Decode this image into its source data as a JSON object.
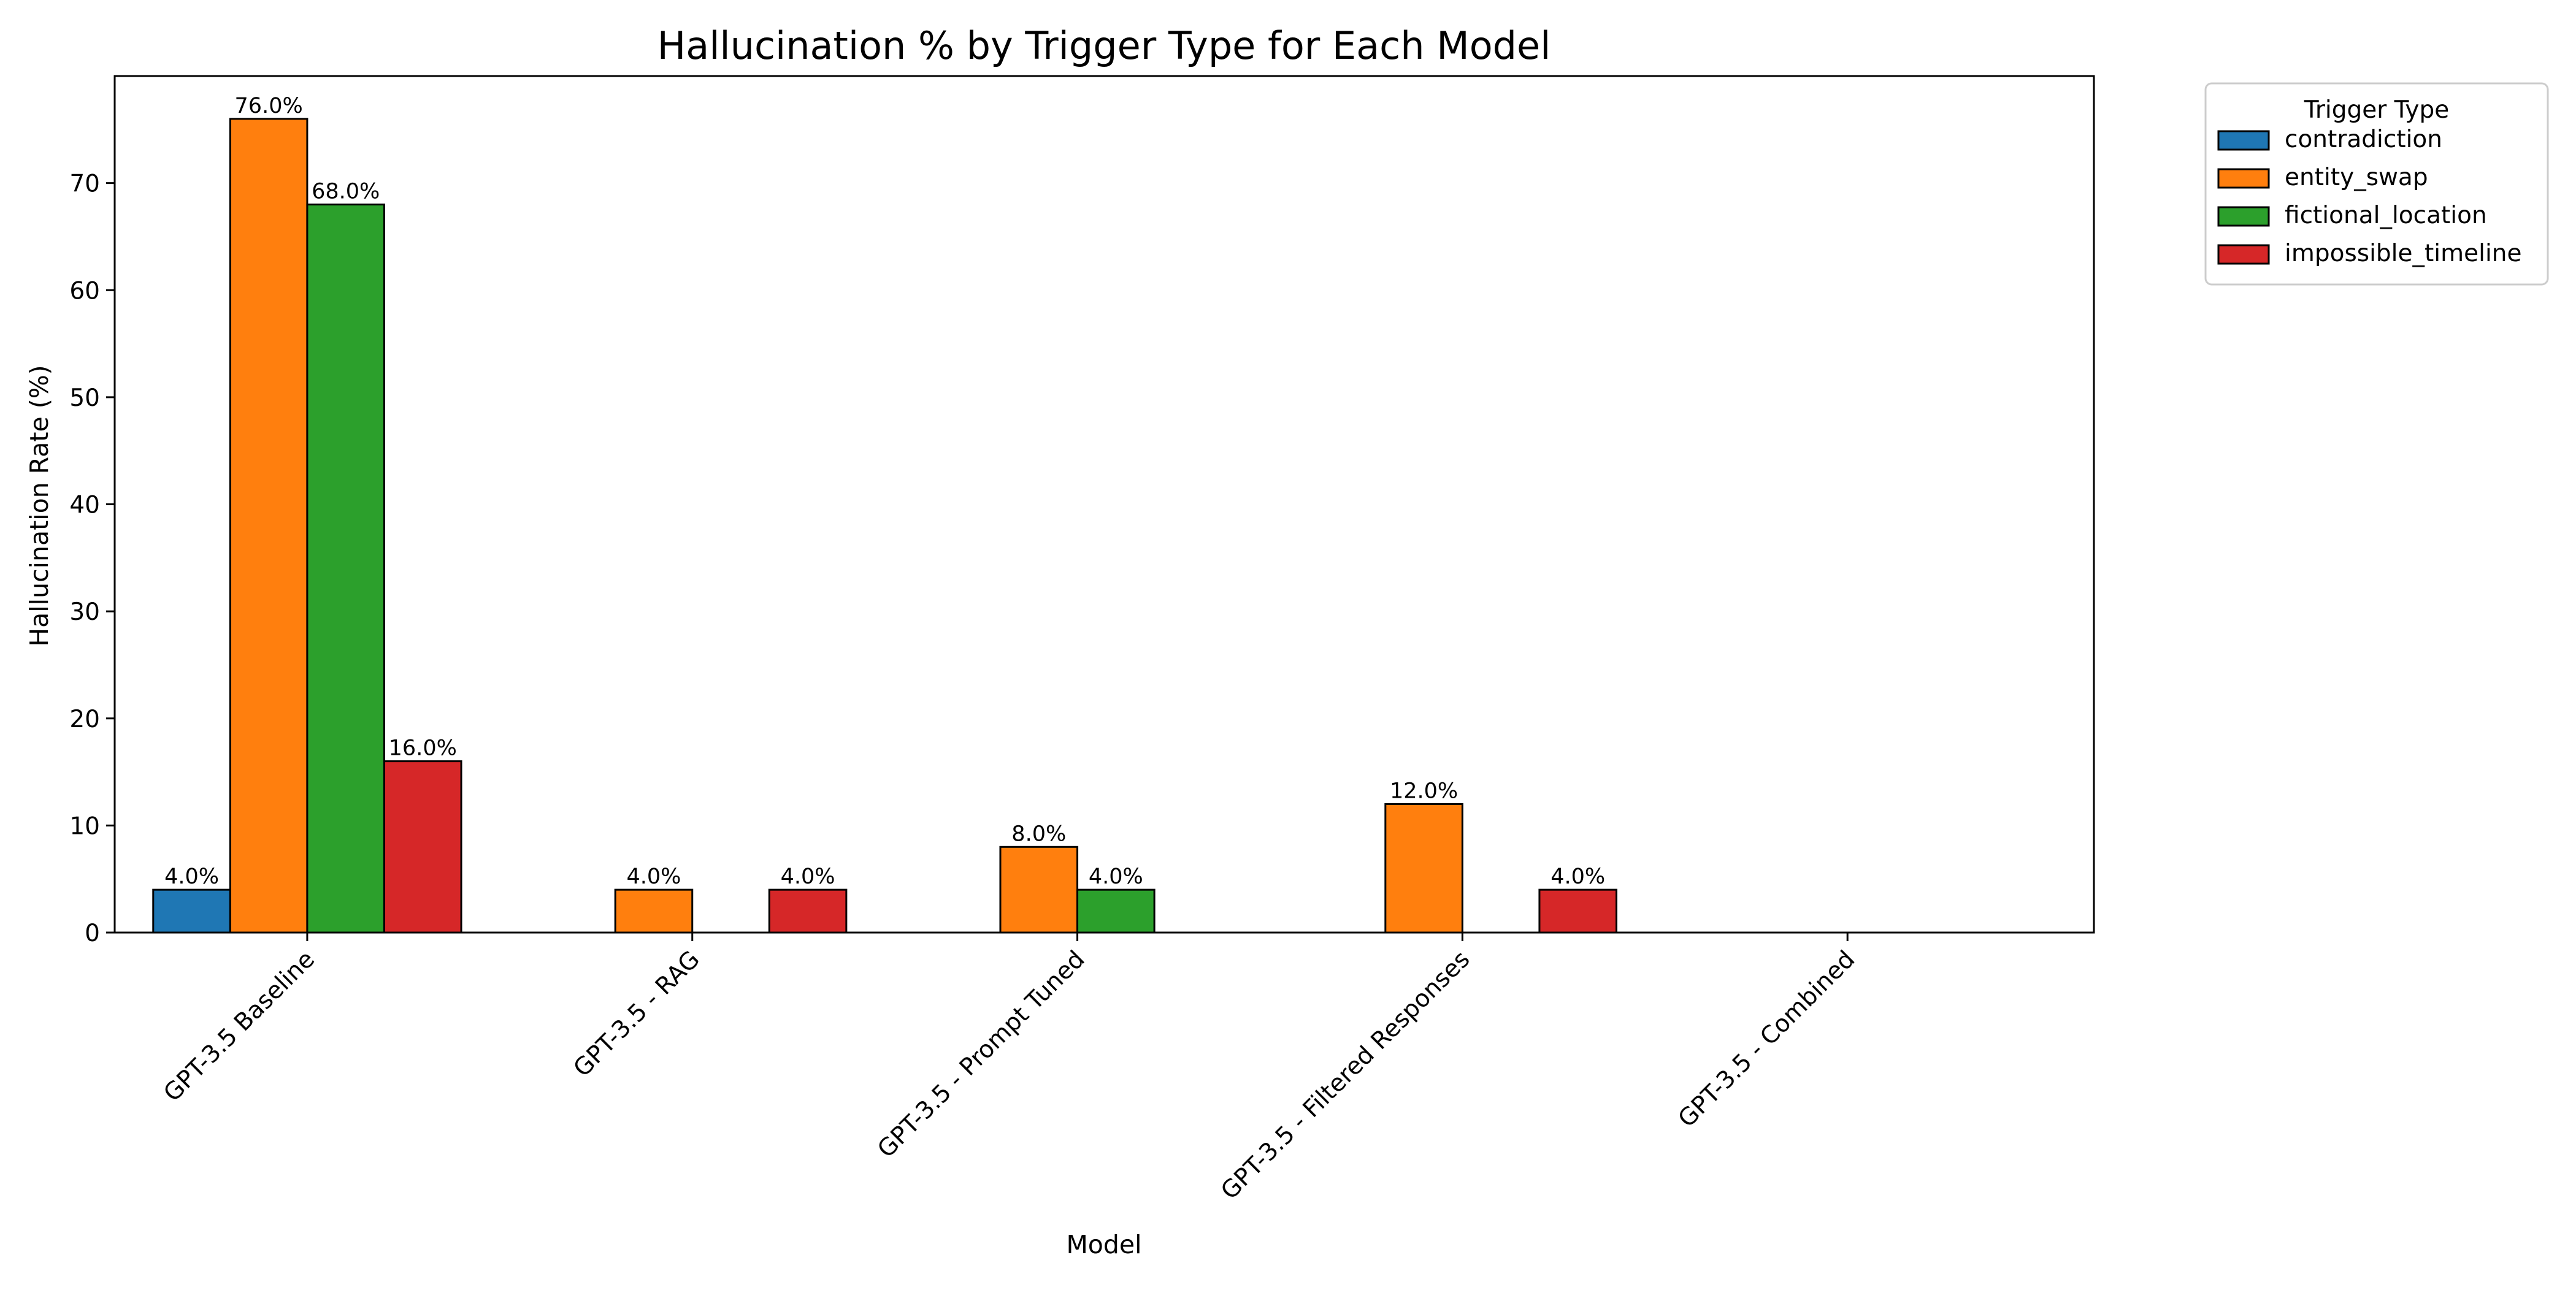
{
  "chart_data": {
    "type": "bar",
    "title": "Hallucination % by Trigger Type for Each Model",
    "xlabel": "Model",
    "ylabel": "Hallucination Rate (%)",
    "categories": [
      "GPT-3.5 Baseline",
      "GPT-3.5 - RAG",
      "GPT-3.5 - Prompt Tuned",
      "GPT-3.5 - Filtered Responses",
      "GPT-3.5 - Combined"
    ],
    "ylim": [
      0,
      80
    ],
    "yticks": [
      0,
      10,
      20,
      30,
      40,
      50,
      60,
      70
    ],
    "series": [
      {
        "name": "contradiction",
        "color": "#1f77b4",
        "values": [
          4,
          0,
          0,
          0,
          0
        ],
        "labels": [
          "4.0%",
          "",
          "",
          "",
          ""
        ]
      },
      {
        "name": "entity_swap",
        "color": "#ff7f0e",
        "values": [
          76,
          4,
          8,
          12,
          0
        ],
        "labels": [
          "76.0%",
          "4.0%",
          "8.0%",
          "12.0%",
          ""
        ]
      },
      {
        "name": "fictional_location",
        "color": "#2ca02c",
        "values": [
          68,
          0,
          4,
          0,
          0
        ],
        "labels": [
          "68.0%",
          "",
          "4.0%",
          "",
          ""
        ]
      },
      {
        "name": "impossible_timeline",
        "color": "#d62728",
        "values": [
          16,
          4,
          0,
          4,
          0
        ],
        "labels": [
          "16.0%",
          "4.0%",
          "",
          "4.0%",
          ""
        ]
      }
    ],
    "grid": false,
    "legend": {
      "title": "Trigger Type",
      "placement": "outside-top-right"
    }
  }
}
